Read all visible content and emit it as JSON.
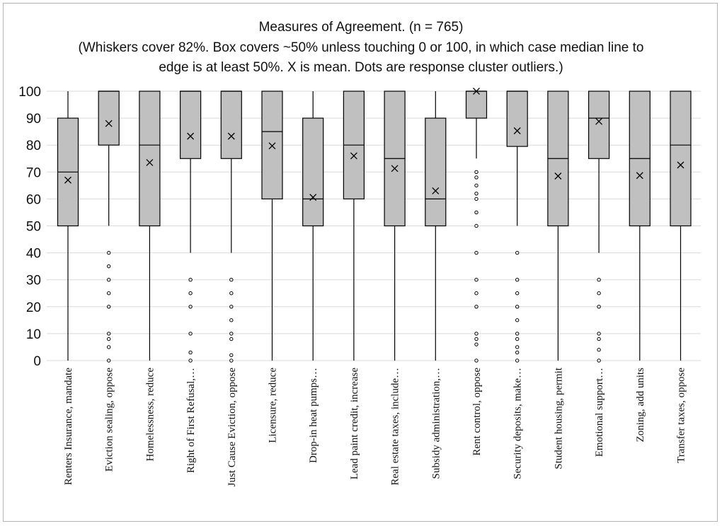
{
  "chart_data": {
    "type": "box",
    "title": "Measures of Agreement. (n = 765)",
    "subtitle_lines": [
      "(Whiskers cover 82%. Box covers ~50% unless touching 0 or 100, in which case median line to",
      "edge is at least 50%. X is mean. Dots are response cluster outliers.)"
    ],
    "ylim": [
      0,
      100
    ],
    "yticks": [
      0,
      10,
      20,
      30,
      40,
      50,
      60,
      70,
      80,
      90,
      100
    ],
    "grid": true,
    "colors": {
      "box_fill": "#c0c0c0",
      "stroke": "#000000",
      "grid": "#d9d9d9"
    },
    "categories": [
      "Renters Insurance, mandate",
      "Eviction sealing, oppose",
      "Homelessness, reduce",
      "Right of First Refusal,…",
      "Just Cause Eviction, oppose",
      "Licensure, reduce",
      "Drop-in heat pumps…",
      "Lead paint credit, increase",
      "Real estate taxes, include…",
      "Subsidy administration,…",
      "Rent control, oppose",
      "Security deposits, make…",
      "Student housing, permit",
      "Emotional support…",
      "Zoning, add units",
      "Transfer taxes, oppose"
    ],
    "boxes": [
      {
        "whisker_low": 0,
        "q1": 50,
        "median": 70,
        "q3": 90,
        "whisker_high": 100,
        "mean": 67,
        "outliers": []
      },
      {
        "whisker_low": 50,
        "q1": 80,
        "median": 100,
        "q3": 100,
        "whisker_high": 100,
        "mean": 88,
        "outliers": [
          40,
          35,
          30,
          25,
          20,
          10,
          8,
          5,
          0
        ]
      },
      {
        "whisker_low": 0,
        "q1": 50,
        "median": 80,
        "q3": 100,
        "whisker_high": 100,
        "mean": 73.5,
        "outliers": []
      },
      {
        "whisker_low": 40,
        "q1": 75,
        "median": 100,
        "q3": 100,
        "whisker_high": 100,
        "mean": 83.3,
        "outliers": [
          30,
          25,
          20,
          10,
          3,
          0
        ]
      },
      {
        "whisker_low": 40,
        "q1": 75,
        "median": 100,
        "q3": 100,
        "whisker_high": 100,
        "mean": 83.3,
        "outliers": [
          30,
          25,
          20,
          15,
          10,
          8,
          2,
          0
        ]
      },
      {
        "whisker_low": 0,
        "q1": 60,
        "median": 85,
        "q3": 100,
        "whisker_high": 100,
        "mean": 79.7,
        "outliers": []
      },
      {
        "whisker_low": 0,
        "q1": 50,
        "median": 60,
        "q3": 90,
        "whisker_high": 100,
        "mean": 60.6,
        "outliers": []
      },
      {
        "whisker_low": 0,
        "q1": 60,
        "median": 80,
        "q3": 100,
        "whisker_high": 100,
        "mean": 76,
        "outliers": []
      },
      {
        "whisker_low": 0,
        "q1": 50,
        "median": 75,
        "q3": 100,
        "whisker_high": 100,
        "mean": 71.3,
        "outliers": []
      },
      {
        "whisker_low": 0,
        "q1": 50,
        "median": 60,
        "q3": 90,
        "whisker_high": 100,
        "mean": 63,
        "outliers": []
      },
      {
        "whisker_low": 75,
        "q1": 90,
        "median": 100,
        "q3": 100,
        "whisker_high": 100,
        "mean": 100,
        "outliers": [
          70,
          68,
          65,
          62,
          60,
          55,
          50,
          40,
          30,
          25,
          20,
          10,
          8,
          6,
          0
        ]
      },
      {
        "whisker_low": 50,
        "q1": 79.5,
        "median": 100,
        "q3": 100,
        "whisker_high": 100,
        "mean": 85.3,
        "outliers": [
          40,
          30,
          25,
          20,
          15,
          10,
          8,
          5,
          3,
          0
        ]
      },
      {
        "whisker_low": 0,
        "q1": 50,
        "median": 75,
        "q3": 100,
        "whisker_high": 100,
        "mean": 68.5,
        "outliers": []
      },
      {
        "whisker_low": 40,
        "q1": 75,
        "median": 90,
        "q3": 100,
        "whisker_high": 100,
        "mean": 88.8,
        "outliers": [
          30,
          25,
          20,
          10,
          8,
          4,
          0
        ]
      },
      {
        "whisker_low": 0,
        "q1": 50,
        "median": 75,
        "q3": 100,
        "whisker_high": 100,
        "mean": 68.7,
        "outliers": []
      },
      {
        "whisker_low": 0,
        "q1": 50,
        "median": 80,
        "q3": 100,
        "whisker_high": 100,
        "mean": 72.6,
        "outliers": []
      }
    ]
  }
}
